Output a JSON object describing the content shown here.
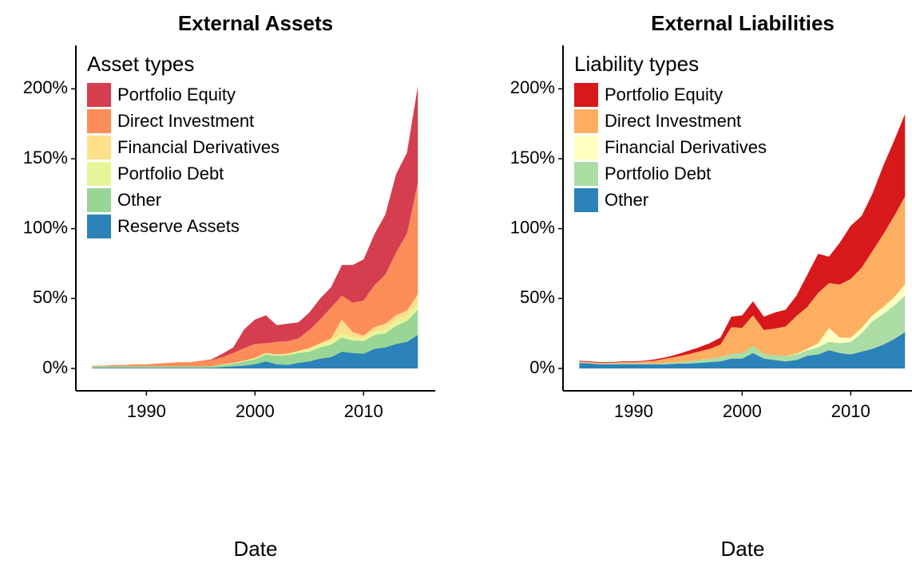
{
  "chart_data": [
    {
      "type": "area",
      "title": "External Assets",
      "x_label": "Date",
      "legend_title": "Asset types",
      "x": [
        1985,
        1986,
        1987,
        1988,
        1989,
        1990,
        1991,
        1992,
        1993,
        1994,
        1995,
        1996,
        1997,
        1998,
        1999,
        2000,
        2001,
        2002,
        2003,
        2004,
        2005,
        2006,
        2007,
        2008,
        2009,
        2010,
        2011,
        2012,
        2013,
        2014,
        2015
      ],
      "series": [
        {
          "name": "Reserve Assets",
          "color": "#2b83ba",
          "values": [
            0.5,
            0.5,
            0.5,
            0.5,
            0.5,
            0.5,
            0.5,
            0.5,
            0.5,
            0.5,
            0.5,
            0.5,
            1,
            1.5,
            2,
            3,
            5,
            3,
            2.5,
            4,
            5,
            7,
            8,
            12,
            11,
            10.5,
            14,
            15,
            17.5,
            19,
            24
          ]
        },
        {
          "name": "Other",
          "color": "#99d594",
          "values": [
            1,
            1,
            1,
            1,
            1,
            1,
            1,
            1,
            1,
            1,
            1,
            1,
            1.5,
            2,
            3,
            3.5,
            5,
            6,
            7,
            7,
            7,
            8,
            9,
            10,
            9,
            9,
            10,
            10,
            13,
            15,
            18
          ]
        },
        {
          "name": "Portfolio Debt",
          "color": "#e6f598",
          "values": [
            0,
            0,
            0,
            0,
            0,
            0,
            0,
            0,
            0,
            0,
            0,
            0,
            0.5,
            0.5,
            0.5,
            1,
            1,
            1,
            1,
            1.5,
            2,
            2,
            2.5,
            3,
            2,
            2,
            2.5,
            3,
            3.5,
            3.5,
            5
          ]
        },
        {
          "name": "Financial Derivatives",
          "color": "#fee08b",
          "values": [
            0,
            0,
            0,
            0,
            0,
            0,
            0,
            0,
            0,
            0,
            0,
            0,
            0,
            0,
            0,
            0,
            0,
            0,
            0,
            0,
            0.5,
            1,
            2,
            10,
            4,
            2,
            3,
            4,
            4,
            4,
            6
          ]
        },
        {
          "name": "Direct Investment",
          "color": "#fc8d59",
          "values": [
            0.5,
            0.5,
            1,
            1,
            1.5,
            1.5,
            2,
            2.5,
            3,
            3,
            4,
            4.5,
            5,
            7,
            9,
            10,
            7,
            9,
            9,
            9,
            13,
            17,
            22,
            17,
            21,
            25,
            30,
            35,
            45,
            55,
            80
          ]
        },
        {
          "name": "Portfolio Equity",
          "color": "#d53e4f",
          "values": [
            0,
            0,
            0,
            0,
            0,
            0,
            0,
            0,
            0,
            0,
            0,
            0.5,
            2.5,
            4,
            13.5,
            17.5,
            20,
            12,
            12.5,
            11.5,
            12.5,
            15,
            14.5,
            22,
            27,
            29.5,
            36.5,
            43,
            56,
            58,
            69
          ]
        }
      ],
      "xlim": [
        1983.5,
        2016.6
      ],
      "xticks": [
        1990,
        2000,
        2010
      ],
      "ylim": [
        -16,
        231
      ],
      "yticks": [
        {
          "value": 0,
          "label": "0%"
        },
        {
          "value": 50,
          "label": "50%"
        },
        {
          "value": 100,
          "label": "100%"
        },
        {
          "value": 150,
          "label": "150%"
        },
        {
          "value": 200,
          "label": "200%"
        }
      ]
    },
    {
      "type": "area",
      "title": "External Liabilities",
      "x_label": "Date",
      "legend_title": "Liability types",
      "x": [
        1985,
        1986,
        1987,
        1988,
        1989,
        1990,
        1991,
        1992,
        1993,
        1994,
        1995,
        1996,
        1997,
        1998,
        1999,
        2000,
        2001,
        2002,
        2003,
        2004,
        2005,
        2006,
        2007,
        2008,
        2009,
        2010,
        2011,
        2012,
        2013,
        2014,
        2015
      ],
      "series": [
        {
          "name": "Other",
          "color": "#2b83ba",
          "values": [
            4,
            3.5,
            3,
            3,
            3,
            3,
            3,
            3,
            3,
            3.5,
            3.5,
            4,
            4.5,
            5,
            7,
            7,
            11,
            7,
            6,
            5,
            6,
            9,
            10,
            13,
            11,
            10,
            12,
            14,
            17,
            21,
            26
          ]
        },
        {
          "name": "Portfolio Debt",
          "color": "#abdda4",
          "values": [
            0.5,
            0.5,
            0.5,
            0.5,
            0.5,
            0.5,
            0.5,
            0.5,
            1,
            1,
            1.5,
            2,
            2.5,
            3,
            3.5,
            4,
            5,
            3.5,
            3.5,
            4,
            4,
            4,
            5,
            6,
            7,
            9,
            13,
            20,
            22,
            24,
            26
          ]
        },
        {
          "name": "Financial Derivatives",
          "color": "#ffffbf",
          "values": [
            0,
            0,
            0,
            0,
            0,
            0,
            0,
            0,
            0,
            0,
            0,
            0,
            0,
            0,
            0,
            0,
            0,
            0,
            0,
            0,
            0.5,
            1,
            3,
            10,
            4,
            3,
            4,
            4,
            5,
            6,
            8
          ]
        },
        {
          "name": "Direct Investment",
          "color": "#fdae61",
          "values": [
            0.5,
            0.5,
            0.5,
            0.5,
            1,
            1,
            1.5,
            2,
            3,
            4,
            5,
            6,
            7,
            9,
            19,
            18,
            22,
            17,
            19,
            21,
            27,
            30,
            36,
            32,
            38,
            42,
            43,
            46,
            52,
            58,
            63
          ]
        },
        {
          "name": "Portfolio Equity",
          "color": "#d7191c",
          "values": [
            0.5,
            0.5,
            0.5,
            0.5,
            0.5,
            0.5,
            0.5,
            1,
            1,
            1.5,
            2.5,
            3,
            4,
            5,
            7.5,
            9,
            10,
            9.5,
            11.5,
            12,
            14.5,
            23,
            28,
            19,
            30,
            38,
            37,
            41,
            49,
            54,
            59
          ]
        }
      ],
      "xlim": [
        1983.5,
        2016.6
      ],
      "xticks": [
        1990,
        2000,
        2010
      ],
      "ylim": [
        -16,
        231
      ],
      "yticks": [
        {
          "value": 0,
          "label": "0%"
        },
        {
          "value": 50,
          "label": "50%"
        },
        {
          "value": 100,
          "label": "100%"
        },
        {
          "value": 150,
          "label": "150%"
        },
        {
          "value": 200,
          "label": "200%"
        }
      ]
    }
  ]
}
